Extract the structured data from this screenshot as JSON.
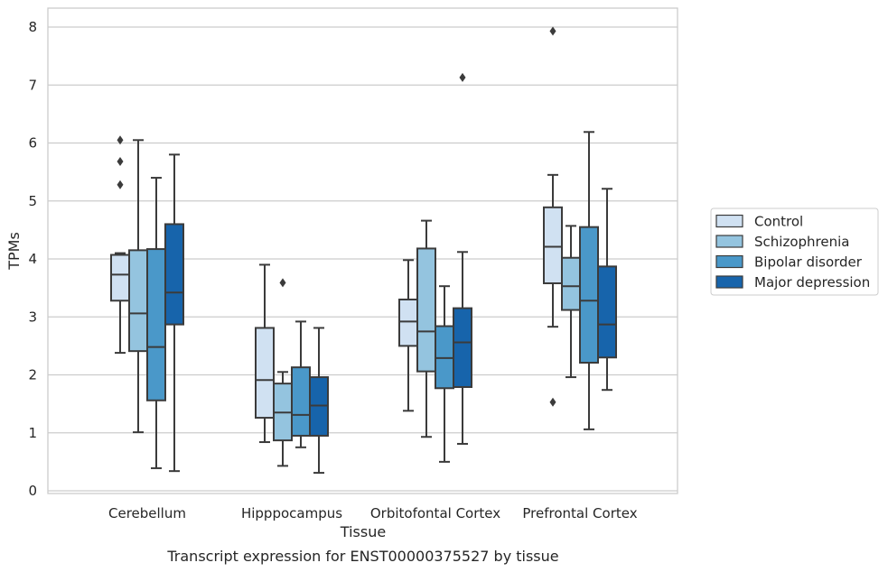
{
  "chart_data": {
    "type": "box",
    "xlabel": "Tissue",
    "ylabel": "TPMs",
    "caption": "Transcript expression for ENST00000375527 by tissue",
    "ylim": [
      -0.1,
      8.3
    ],
    "yticks": [
      0,
      1,
      2,
      3,
      4,
      5,
      6,
      7,
      8
    ],
    "grid": "horizontal",
    "legend_placement": "right",
    "categories": [
      "Cerebellum",
      "Hipppocampus",
      "Orbitofontal Cortex",
      "Prefrontal Cortex"
    ],
    "series": [
      {
        "name": "Control",
        "color": "#d0e1f2",
        "boxes": [
          {
            "whislo": 2.38,
            "q1": 3.28,
            "med": 3.73,
            "q3": 4.07,
            "whishi": 4.1,
            "fliers": [
              5.28,
              5.68,
              6.05
            ]
          },
          {
            "whislo": 0.84,
            "q1": 1.26,
            "med": 1.91,
            "q3": 2.81,
            "whishi": 3.9,
            "fliers": []
          },
          {
            "whislo": 1.38,
            "q1": 2.5,
            "med": 2.92,
            "q3": 3.3,
            "whishi": 3.98,
            "fliers": []
          },
          {
            "whislo": 2.83,
            "q1": 3.58,
            "med": 4.21,
            "q3": 4.89,
            "whishi": 5.45,
            "fliers": [
              1.53,
              7.93
            ]
          }
        ]
      },
      {
        "name": "Schizophrenia",
        "color": "#94c4df",
        "boxes": [
          {
            "whislo": 1.01,
            "q1": 2.41,
            "med": 3.06,
            "q3": 4.15,
            "whishi": 6.05,
            "fliers": []
          },
          {
            "whislo": 0.43,
            "q1": 0.87,
            "med": 1.35,
            "q3": 1.85,
            "whishi": 2.05,
            "fliers": [
              3.59
            ]
          },
          {
            "whislo": 0.93,
            "q1": 2.06,
            "med": 2.75,
            "q3": 4.18,
            "whishi": 4.66,
            "fliers": []
          },
          {
            "whislo": 1.96,
            "q1": 3.12,
            "med": 3.53,
            "q3": 4.02,
            "whishi": 4.57,
            "fliers": []
          }
        ]
      },
      {
        "name": "Bipolar disorder",
        "color": "#4a98c9",
        "boxes": [
          {
            "whislo": 0.39,
            "q1": 1.56,
            "med": 2.48,
            "q3": 4.17,
            "whishi": 5.4,
            "fliers": []
          },
          {
            "whislo": 0.75,
            "q1": 0.95,
            "med": 1.31,
            "q3": 2.13,
            "whishi": 2.92,
            "fliers": []
          },
          {
            "whislo": 0.5,
            "q1": 1.77,
            "med": 2.29,
            "q3": 2.84,
            "whishi": 3.53,
            "fliers": []
          },
          {
            "whislo": 1.06,
            "q1": 2.21,
            "med": 3.28,
            "q3": 4.55,
            "whishi": 6.19,
            "fliers": []
          }
        ]
      },
      {
        "name": "Major depression",
        "color": "#1764ab",
        "boxes": [
          {
            "whislo": 0.34,
            "q1": 2.87,
            "med": 3.42,
            "q3": 4.6,
            "whishi": 5.8,
            "fliers": []
          },
          {
            "whislo": 0.31,
            "q1": 0.95,
            "med": 1.47,
            "q3": 1.96,
            "whishi": 2.81,
            "fliers": []
          },
          {
            "whislo": 0.81,
            "q1": 1.79,
            "med": 2.56,
            "q3": 3.15,
            "whishi": 4.12,
            "fliers": [
              7.13
            ]
          },
          {
            "whislo": 1.74,
            "q1": 2.3,
            "med": 2.87,
            "q3": 3.87,
            "whishi": 5.21,
            "fliers": []
          }
        ]
      }
    ]
  }
}
